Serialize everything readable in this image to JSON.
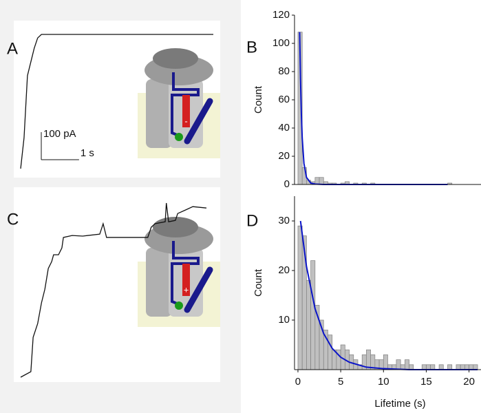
{
  "chart_data": [
    {
      "type": "trace",
      "label": "A",
      "x": [
        0,
        0.09,
        0.18,
        0.27,
        0.36,
        0.45,
        0.55,
        5.1
      ],
      "values": [
        0,
        112,
        338,
        388,
        438,
        475,
        488,
        488
      ],
      "xlim": [
        0,
        5.1
      ],
      "ylim": [
        0,
        488
      ],
      "color": "#111111",
      "scale_bars": {
        "x": {
          "value": 1,
          "label": "1 s"
        },
        "y": {
          "value": 100,
          "label": "100 pA"
        }
      },
      "inset_sign": "-"
    },
    {
      "type": "histogram",
      "label": "B",
      "y_label": "Count",
      "bins": [
        0,
        0.5,
        1,
        1.5,
        2,
        2.5,
        3,
        3.5,
        4,
        4.5,
        5,
        5.5,
        6,
        6.5,
        7,
        7.5,
        8,
        8.5,
        9,
        9.5,
        10,
        10.5,
        11,
        11.5,
        12,
        12.5,
        13,
        13.5,
        14,
        14.5,
        15,
        15.5,
        16,
        16.5,
        17,
        17.5,
        18
      ],
      "values": [
        108,
        12,
        3,
        2,
        5,
        5,
        2,
        1,
        1,
        0,
        1,
        2,
        0,
        1,
        0,
        1,
        0,
        1,
        0,
        0,
        0,
        0,
        0,
        0,
        0,
        0,
        0,
        0,
        0,
        0,
        0,
        0,
        0,
        0,
        0,
        1
      ],
      "color": "#c0c0c0",
      "xlim": [
        -0.4,
        21.4
      ],
      "ylim": [
        0,
        120
      ],
      "yticks": [
        0,
        20,
        40,
        60,
        80,
        100,
        120
      ],
      "fit": {
        "color": "#0a14c8",
        "x": [
          0.2,
          0.3,
          0.4,
          0.5,
          0.7,
          1,
          1.5,
          2,
          3,
          17.5
        ],
        "values": [
          108,
          75,
          50,
          33,
          15,
          5,
          1,
          0.3,
          0,
          0
        ]
      }
    },
    {
      "type": "trace",
      "label": "C",
      "x": [
        0,
        0.27,
        0.33,
        0.45,
        0.55,
        0.64,
        0.73,
        0.82,
        0.87,
        1.0,
        1.09,
        1.13,
        1.36,
        1.64,
        2.09,
        2.15,
        2.18,
        2.27,
        3.36,
        3.45,
        3.55,
        3.82,
        3.85,
        3.91,
        4.09,
        4.15,
        4.36,
        4.55,
        4.91
      ],
      "values": [
        0,
        20,
        145,
        195,
        270,
        320,
        395,
        420,
        445,
        445,
        470,
        508,
        515,
        513,
        520,
        545,
        558,
        508,
        508,
        545,
        558,
        565,
        633,
        565,
        570,
        595,
        608,
        620,
        615
      ],
      "xlim": [
        0,
        4.91
      ],
      "ylim": [
        0,
        633
      ],
      "color": "#111111",
      "inset_sign": "+"
    },
    {
      "type": "histogram",
      "label": "D",
      "y_label": "Count",
      "x_label": "Lifetime (s)",
      "bins": [
        0,
        0.5,
        1,
        1.5,
        2,
        2.5,
        3,
        3.5,
        4,
        4.5,
        5,
        5.5,
        6,
        6.5,
        7,
        7.5,
        8,
        8.5,
        9,
        9.5,
        10,
        10.5,
        11,
        11.5,
        12,
        12.5,
        13,
        13.5,
        14,
        14.5,
        15,
        15.5,
        16,
        16.5,
        17,
        17.5,
        18,
        18.5,
        19,
        19.5,
        20,
        20.5,
        21
      ],
      "values": [
        29,
        27,
        18,
        22,
        13,
        10,
        8,
        7,
        4,
        4,
        5,
        4,
        3,
        2,
        1,
        3,
        4,
        3,
        2,
        2,
        3,
        1,
        1,
        2,
        1,
        2,
        1,
        0,
        0,
        1,
        1,
        1,
        0,
        1,
        0,
        1,
        0,
        1,
        1,
        1,
        1,
        1
      ],
      "color": "#c0c0c0",
      "xlim": [
        -0.4,
        21.4
      ],
      "ylim": [
        0,
        35
      ],
      "xticks": [
        0,
        5,
        10,
        15,
        20
      ],
      "yticks": [
        10,
        20,
        30
      ],
      "fit": {
        "color": "#0a14c8",
        "x": [
          0.3,
          1,
          2,
          3,
          4,
          5,
          6,
          8,
          10,
          13,
          16,
          21
        ],
        "values": [
          30,
          20.8,
          12.3,
          7.3,
          4.3,
          2.5,
          1.5,
          0.5,
          0.2,
          0,
          0,
          0
        ]
      }
    }
  ]
}
